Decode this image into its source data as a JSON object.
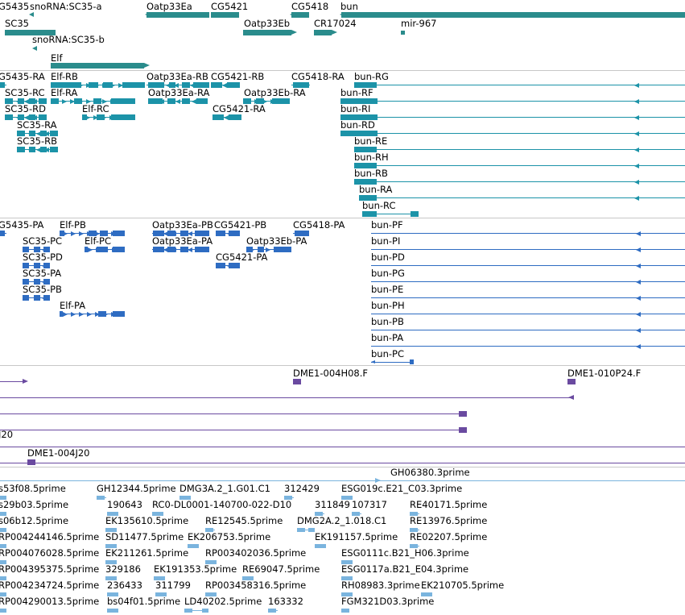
{
  "colors": {
    "gene": "#2a8c8c",
    "flybase_transcript": "#1c93a8",
    "refseq_transcript": "#2e6cc2",
    "clone": "#6a4aa0",
    "est": "#7ab4de",
    "separator": "#c8c8c8"
  },
  "tracks": {
    "genes": {
      "labels": [
        "G5435",
        "snoRNA:SC35-a",
        "Oatp33Ea",
        "CG5421",
        "CG5418",
        "bun",
        "SC35",
        "Oatp33Eb",
        "CR17024",
        "mir-967",
        "snoRNA:SC35-b",
        "Elf"
      ]
    },
    "flybase_transcripts": {
      "labels": [
        "G5435-RA",
        "Elf-RB",
        "Oatp33Ea-RB",
        "CG5421-RB",
        "CG5418-RA",
        "bun-RG",
        "SC35-RC",
        "Elf-RA",
        "Oatp33Ea-RA",
        "Oatp33Eb-RA",
        "bun-RF",
        "SC35-RD",
        "Elf-RC",
        "CG5421-RA",
        "bun-RI",
        "SC35-RA",
        "bun-RD",
        "SC35-RB",
        "bun-RE",
        "bun-RH",
        "bun-RB",
        "bun-RA",
        "bun-RC"
      ]
    },
    "refseq_transcripts": {
      "labels": [
        "G5435-PA",
        "Elf-PB",
        "Oatp33Ea-PB",
        "CG5421-PB",
        "CG5418-PA",
        "bun-PF",
        "SC35-PC",
        "Elf-PC",
        "Oatp33Ea-PA",
        "Oatp33Eb-PA",
        "bun-PI",
        "SC35-PD",
        "CG5421-PA",
        "bun-PD",
        "SC35-PA",
        "bun-PG",
        "SC35-PB",
        "bun-PE",
        "Elf-PA",
        "bun-PH",
        "bun-PB",
        "bun-PA",
        "bun-PC"
      ]
    },
    "clones": {
      "labels": [
        "DME1-004H08.F",
        "DME1-010P24.F",
        "J20",
        "DME1-004J20"
      ]
    },
    "ests": {
      "labels": [
        "GH06380.3prime",
        "s53f08.5prime",
        "GH12344.5prime",
        "DMG3A.2_1.G01.C1",
        "312429",
        "ESG019c.E21_C03.3prime",
        "s29b03.5prime",
        "190643",
        "RC0-DL0001-140700-022-D10",
        "311849",
        "107317",
        "RE40171.5prime",
        "s06b12.5prime",
        "EK135610.5prime",
        "RE12545.5prime",
        "DMG2A.2_1.018.C1",
        "RE13976.5prime",
        "RP004244146.5prime",
        "SD11477.5prime",
        "EK206753.5prime",
        "EK191157.5prime",
        "RE02207.5prime",
        "RP004076028.5prime",
        "EK211261.5prime",
        "RP003402036.5prime",
        "ESG0111c.B21_H06.3prime",
        "RP004395375.5prime",
        "329186",
        "EK191353.5prime",
        "RE69047.5prime",
        "ESG0117a.B21_E04.3prime",
        "RP004234724.5prime",
        "236433",
        "311799",
        "RP003458316.5prime",
        "RH08983.3prime",
        "EK210705.5prime",
        "RP004290013.5prime",
        "bs04f01.5prime",
        "LD40202.5prime",
        "163332",
        "FGM321D03.3prime"
      ]
    }
  }
}
